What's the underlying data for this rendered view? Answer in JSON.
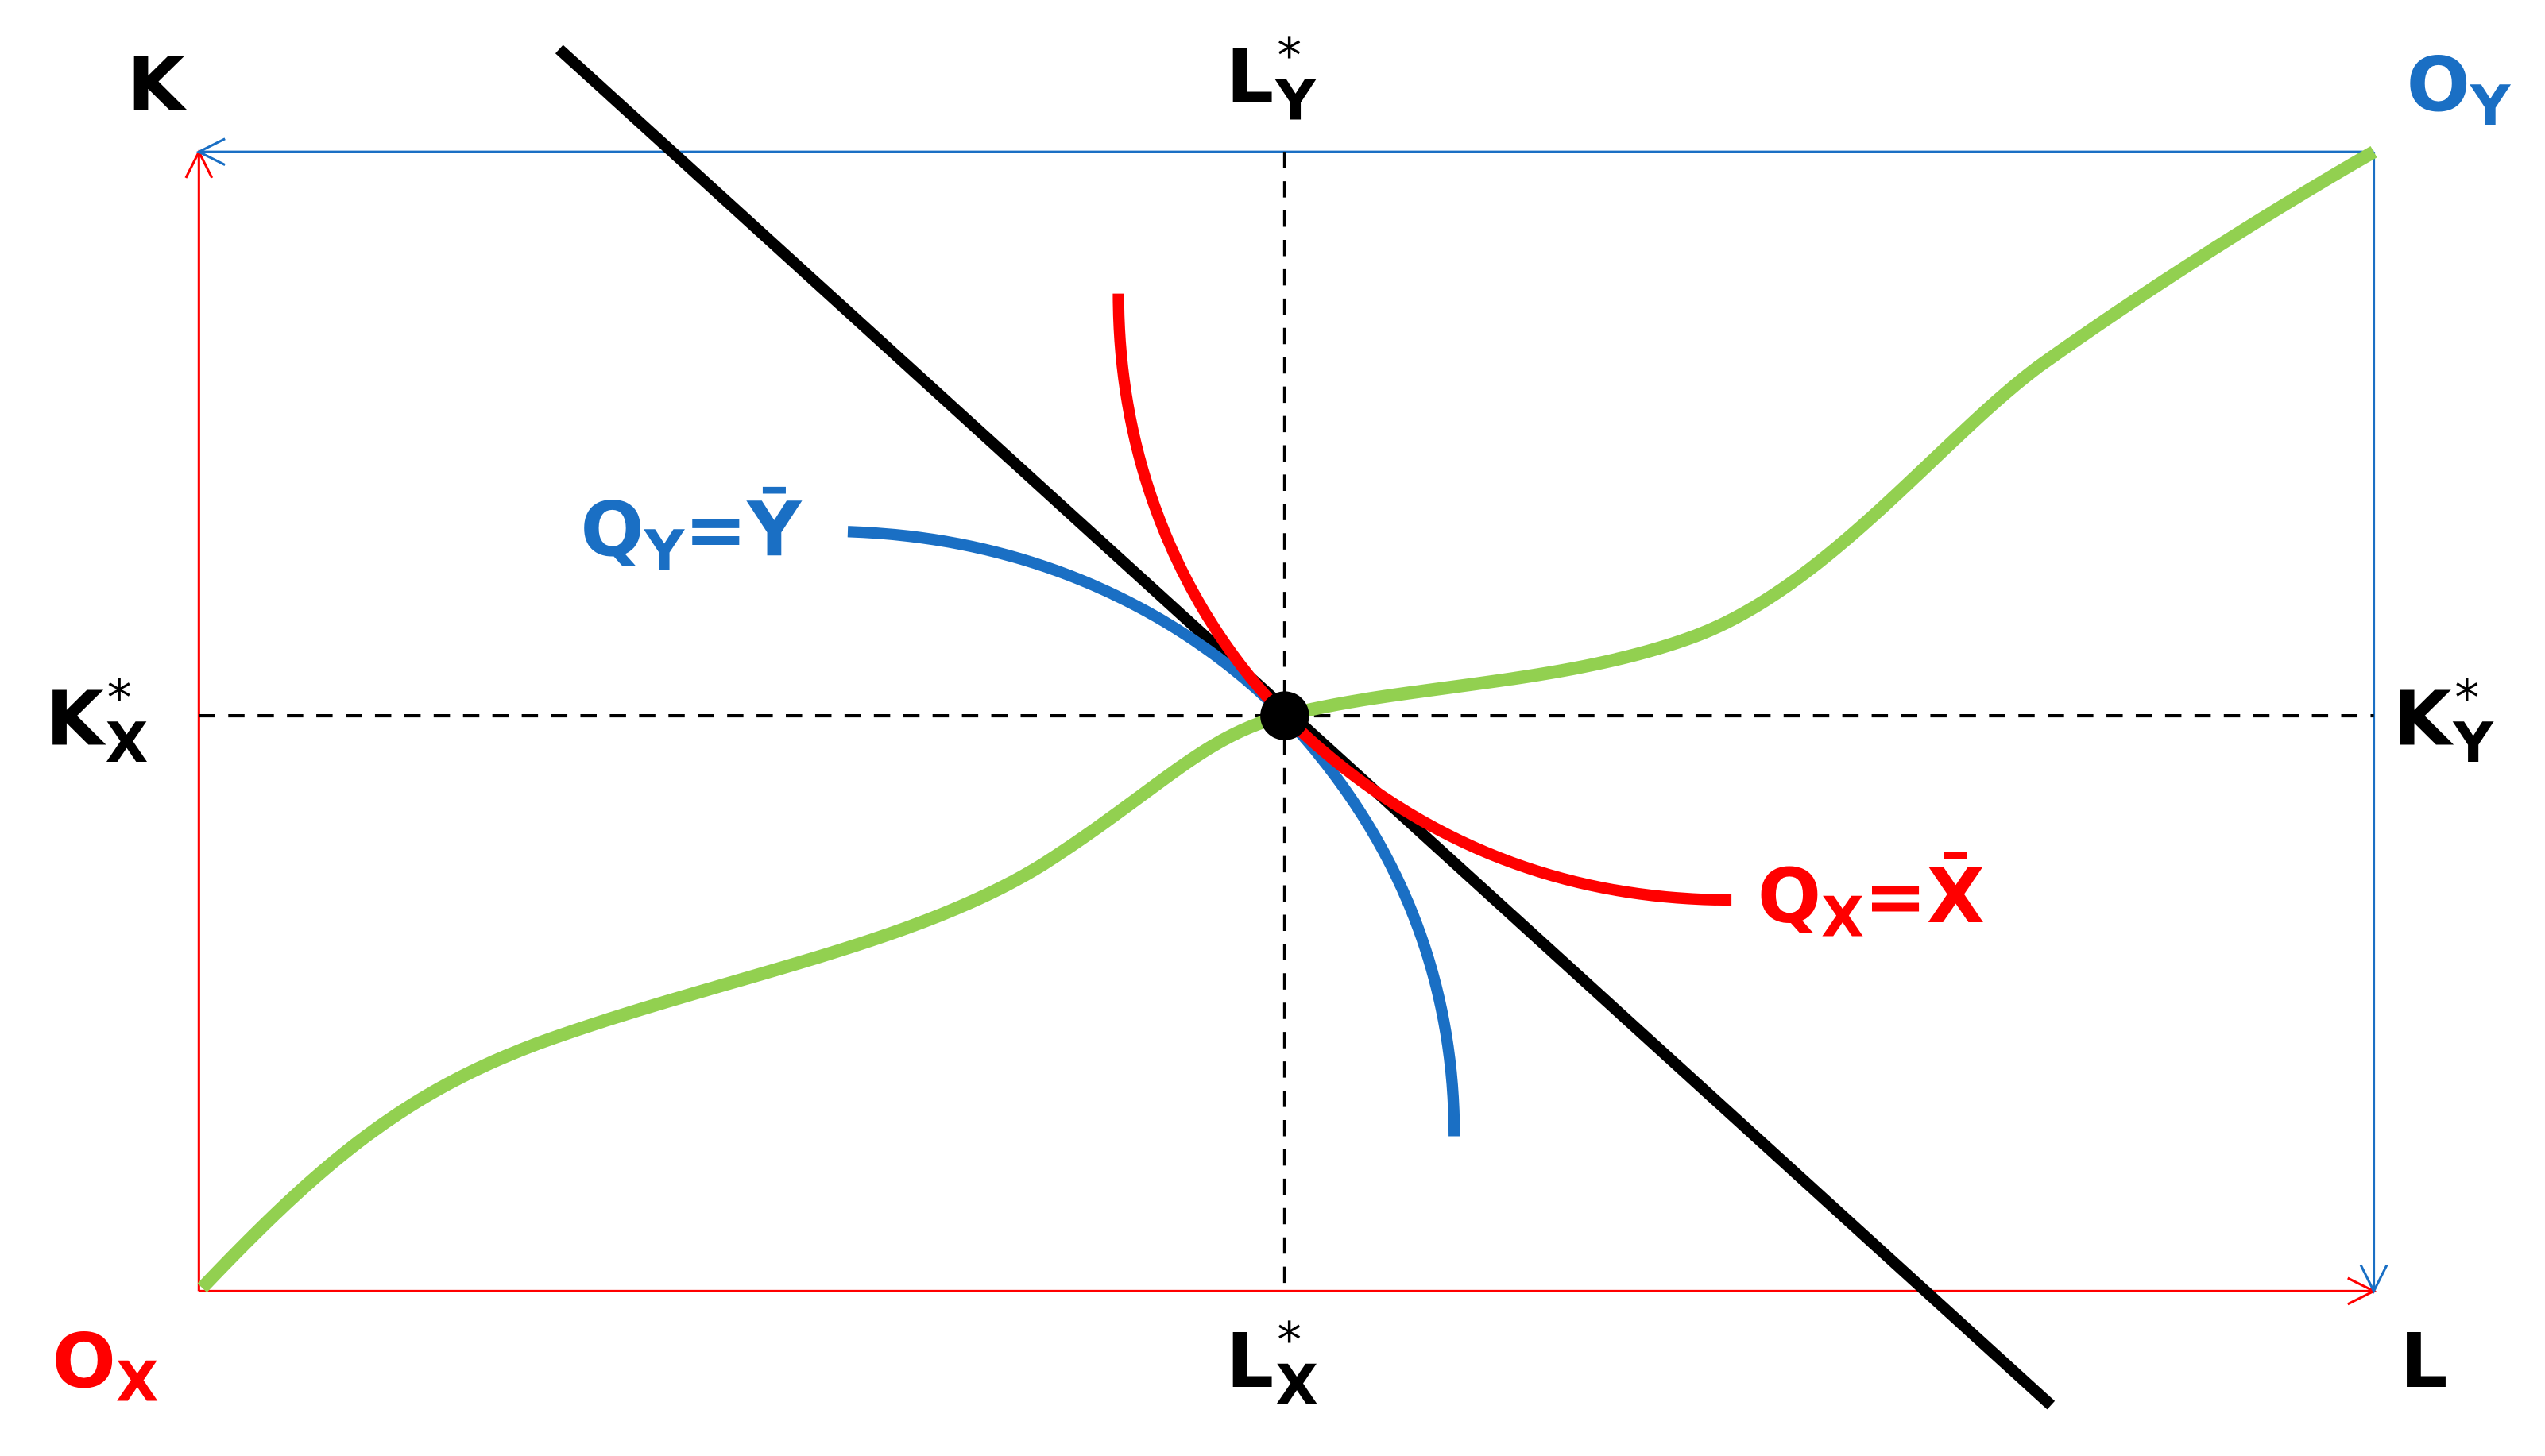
{
  "labels": {
    "k_axis": {
      "base": "K"
    },
    "l_axis": {
      "base": "L"
    },
    "origin_x": {
      "base": "O",
      "sub": "X"
    },
    "origin_y": {
      "base": "O",
      "sub": "Y"
    },
    "l_star_y": {
      "base": "L",
      "sub": "Y",
      "sup": "*"
    },
    "l_star_x": {
      "base": "L",
      "sub": "X",
      "sup": "*"
    },
    "k_star_x": {
      "base": "K",
      "sub": "X",
      "sup": "*"
    },
    "k_star_y": {
      "base": "K",
      "sub": "Y",
      "sup": "*"
    },
    "isoquant_y": {
      "base": "Q",
      "sub": "Y",
      "rest": "=Ȳ"
    },
    "isoquant_x": {
      "base": "Q",
      "sub": "X",
      "rest": "=X̄"
    }
  }
}
